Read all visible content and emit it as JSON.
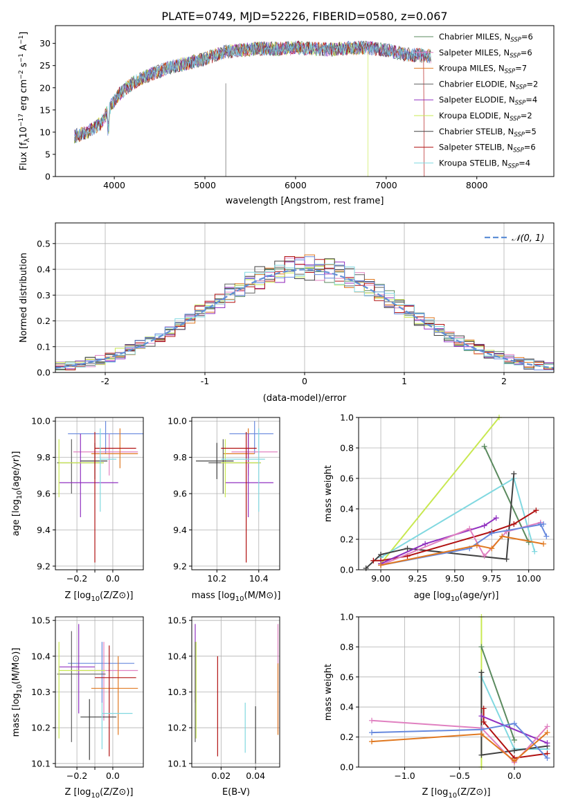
{
  "figure_title": "PLATE=0749, MJD=52226, FIBERID=0580, z=0.067",
  "colors": {
    "Chabrier MILES": "#5a8a5e",
    "Salpeter MILES": "#e080c0",
    "Kroupa MILES": "#e07820",
    "Chabrier ELODIE": "#606060",
    "Salpeter ELODIE": "#9030c0",
    "Kroupa ELODIE": "#c8e850",
    "Chabrier STELIB": "#404040",
    "Salpeter STELIB": "#b01010",
    "Kroupa STELIB": "#80d8e0",
    "blue": "#6688dd",
    "gauss": "#5f8fd6"
  },
  "chart_data": [
    {
      "id": "spectrum",
      "type": "line",
      "xlabel": "wavelength [Angstrom, rest frame]",
      "ylabel": "Flux [f",
      "xlim": [
        3350,
        8850
      ],
      "ylim": [
        0,
        34
      ],
      "xticks": [
        4000,
        5000,
        6000,
        7000,
        8000
      ],
      "yticks": [
        0,
        5,
        10,
        15,
        20,
        25,
        30
      ],
      "continuum": [
        [
          3550,
          9
        ],
        [
          3700,
          10
        ],
        [
          3850,
          12
        ],
        [
          3950,
          15.5
        ],
        [
          4050,
          18.5
        ],
        [
          4200,
          21
        ],
        [
          4400,
          23
        ],
        [
          4600,
          24.5
        ],
        [
          4800,
          25.5
        ],
        [
          5000,
          26.5
        ],
        [
          5200,
          28
        ],
        [
          5400,
          28.5
        ],
        [
          5600,
          28.8
        ],
        [
          5800,
          28.8
        ],
        [
          6000,
          29
        ],
        [
          6200,
          28.8
        ],
        [
          6400,
          28.6
        ],
        [
          6600,
          29
        ],
        [
          6800,
          29
        ],
        [
          7000,
          28.5
        ],
        [
          7200,
          27.5
        ],
        [
          7400,
          27.3
        ],
        [
          7500,
          27
        ]
      ],
      "legend": [
        {
          "label": "Chabrier MILES, N",
          "n": "6",
          "color_key": "Chabrier MILES"
        },
        {
          "label": "Salpeter MILES, N",
          "n": "6",
          "color_key": "Salpeter MILES"
        },
        {
          "label": "Kroupa MILES, N",
          "n": "7",
          "color_key": "Kroupa MILES"
        },
        {
          "label": "Chabrier ELODIE, N",
          "n": "2",
          "color_key": "Chabrier ELODIE"
        },
        {
          "label": "Salpeter ELODIE, N",
          "n": "4",
          "color_key": "Salpeter ELODIE"
        },
        {
          "label": "Kroupa ELODIE, N",
          "n": "2",
          "color_key": "Kroupa ELODIE"
        },
        {
          "label": "Chabrier STELIB, N",
          "n": "5",
          "color_key": "Chabrier STELIB"
        },
        {
          "label": "Salpeter STELIB, N",
          "n": "6",
          "color_key": "Salpeter STELIB"
        },
        {
          "label": "Kroupa STELIB, N",
          "n": "4",
          "color_key": "Kroupa STELIB"
        }
      ]
    },
    {
      "id": "residuals",
      "type": "bar",
      "xlabel": "(data-model)/error",
      "ylabel": "Normed distribution",
      "xlim": [
        -2.5,
        2.5
      ],
      "ylim": [
        0,
        0.58
      ],
      "xticks": [
        -2,
        -1,
        0,
        1,
        2
      ],
      "yticks": [
        0.0,
        0.1,
        0.2,
        0.3,
        0.4,
        0.5
      ],
      "legend_label": "𝒩(0, 1)",
      "bin_width": 0.1
    },
    {
      "id": "z-age",
      "type": "scatter",
      "xlabel": "Z [log",
      "ylabel": "age  [log",
      "xlim": [
        -0.32,
        0.17
      ],
      "ylim": [
        9.18,
        10.02
      ],
      "xticks": [
        -0.2,
        -0.1,
        0.0
      ],
      "xticklabels": [
        "−0.2",
        "",
        "0.0"
      ],
      "yticks": [
        9.2,
        9.4,
        9.6,
        9.8,
        10.0
      ],
      "points": [
        {
          "key": "blue",
          "x": -0.04,
          "y": 9.93,
          "xlo": -0.25,
          "xhi": 0.17,
          "ylo": 9.82,
          "yhi": 10.0
        },
        {
          "key": "Salpeter MILES",
          "x": -0.02,
          "y": 9.83,
          "xlo": -0.22,
          "xhi": 0.14,
          "ylo": 9.7,
          "yhi": 9.93
        },
        {
          "key": "Kroupa MILES",
          "x": 0.04,
          "y": 9.82,
          "xlo": -0.12,
          "xhi": 0.14,
          "ylo": 9.74,
          "yhi": 9.96
        },
        {
          "key": "Chabrier ELODIE",
          "x": -0.23,
          "y": 9.77,
          "xlo": -0.31,
          "xhi": -0.05,
          "ylo": 9.6,
          "yhi": 9.9
        },
        {
          "key": "Salpeter ELODIE",
          "x": -0.18,
          "y": 9.66,
          "xlo": -0.3,
          "xhi": 0.03,
          "ylo": 9.47,
          "yhi": 9.93
        },
        {
          "key": "Kroupa ELODIE",
          "x": -0.3,
          "y": 9.77,
          "xlo": -0.3,
          "xhi": -0.05,
          "ylo": 9.58,
          "yhi": 9.9
        },
        {
          "key": "Chabrier STELIB",
          "x": -0.1,
          "y": 9.78,
          "xlo": -0.18,
          "xhi": -0.03,
          "ylo": 9.68,
          "yhi": 9.88
        },
        {
          "key": "Salpeter STELIB",
          "x": -0.1,
          "y": 9.85,
          "xlo": -0.1,
          "xhi": 0.13,
          "ylo": 9.22,
          "yhi": 9.94
        },
        {
          "key": "Kroupa STELIB",
          "x": -0.07,
          "y": 9.79,
          "xlo": -0.07,
          "xhi": 0.02,
          "ylo": 9.5,
          "yhi": 9.96
        }
      ]
    },
    {
      "id": "mass-age",
      "type": "scatter",
      "xlabel": "mass [log",
      "ylabel": "",
      "xlim": [
        10.08,
        10.5
      ],
      "ylim": [
        9.18,
        10.02
      ],
      "xticks": [
        10.2,
        10.4
      ],
      "yticks": [
        9.2,
        9.4,
        9.6,
        9.8,
        10.0
      ],
      "points": [
        {
          "key": "blue",
          "x": 10.38,
          "y": 9.93,
          "xlo": 10.26,
          "xhi": 10.47,
          "ylo": 9.82,
          "yhi": 10.0
        },
        {
          "key": "Salpeter MILES",
          "x": 10.35,
          "y": 9.83,
          "xlo": 10.27,
          "xhi": 10.49,
          "ylo": 9.7,
          "yhi": 9.93
        },
        {
          "key": "Kroupa MILES",
          "x": 10.35,
          "y": 9.82,
          "xlo": 10.23,
          "xhi": 10.38,
          "ylo": 9.74,
          "yhi": 9.96
        },
        {
          "key": "Chabrier ELODIE",
          "x": 10.23,
          "y": 9.77,
          "xlo": 10.16,
          "xhi": 10.41,
          "ylo": 9.6,
          "yhi": 9.9
        },
        {
          "key": "Salpeter ELODIE",
          "x": 10.35,
          "y": 9.66,
          "xlo": 10.24,
          "xhi": 10.47,
          "ylo": 9.47,
          "yhi": 9.93
        },
        {
          "key": "Kroupa ELODIE",
          "x": 10.24,
          "y": 9.77,
          "xlo": 10.22,
          "xhi": 10.41,
          "ylo": 9.58,
          "yhi": 9.9
        },
        {
          "key": "Chabrier STELIB",
          "x": 10.2,
          "y": 9.78,
          "xlo": 10.1,
          "xhi": 10.28,
          "ylo": 9.68,
          "yhi": 9.88
        },
        {
          "key": "Salpeter STELIB",
          "x": 10.34,
          "y": 9.85,
          "xlo": 10.22,
          "xhi": 10.39,
          "ylo": 9.22,
          "yhi": 9.94
        },
        {
          "key": "Kroupa STELIB",
          "x": 10.4,
          "y": 9.79,
          "xlo": 10.22,
          "xhi": 10.43,
          "ylo": 9.5,
          "yhi": 9.96
        }
      ]
    },
    {
      "id": "z-mass",
      "type": "scatter",
      "xlabel": "Z [log",
      "ylabel": "mass [log",
      "xlim": [
        -0.32,
        0.17
      ],
      "ylim": [
        10.09,
        10.51
      ],
      "xticks": [
        -0.2,
        -0.1,
        0.0
      ],
      "xticklabels": [
        "−0.2",
        "",
        "0.0"
      ],
      "yticks": [
        10.1,
        10.2,
        10.3,
        10.4,
        10.5
      ],
      "points": [
        {
          "key": "blue",
          "x": -0.06,
          "y": 10.38,
          "xlo": -0.25,
          "xhi": 0.12,
          "ylo": 10.27,
          "yhi": 10.44
        },
        {
          "key": "Salpeter MILES",
          "x": -0.05,
          "y": 10.36,
          "xlo": -0.22,
          "xhi": 0.14,
          "ylo": 10.22,
          "yhi": 10.44
        },
        {
          "key": "Kroupa MILES",
          "x": 0.03,
          "y": 10.31,
          "xlo": -0.12,
          "xhi": 0.14,
          "ylo": 10.18,
          "yhi": 10.4
        },
        {
          "key": "Chabrier ELODIE",
          "x": -0.23,
          "y": 10.35,
          "xlo": -0.31,
          "xhi": -0.04,
          "ylo": 10.16,
          "yhi": 10.47
        },
        {
          "key": "Salpeter ELODIE",
          "x": -0.19,
          "y": 10.37,
          "xlo": -0.3,
          "xhi": -0.1,
          "ylo": 10.24,
          "yhi": 10.49
        },
        {
          "key": "Kroupa ELODIE",
          "x": -0.3,
          "y": 10.36,
          "xlo": -0.3,
          "xhi": -0.04,
          "ylo": 10.17,
          "yhi": 10.44
        },
        {
          "key": "Chabrier STELIB",
          "x": -0.13,
          "y": 10.23,
          "xlo": -0.18,
          "xhi": 0.02,
          "ylo": 10.11,
          "yhi": 10.28
        },
        {
          "key": "Salpeter STELIB",
          "x": -0.02,
          "y": 10.34,
          "xlo": -0.1,
          "xhi": 0.13,
          "ylo": 10.12,
          "yhi": 10.43
        },
        {
          "key": "Kroupa STELIB",
          "x": -0.06,
          "y": 10.24,
          "xlo": -0.06,
          "xhi": 0.11,
          "ylo": 10.14,
          "yhi": 10.27
        }
      ]
    },
    {
      "id": "ebv",
      "type": "scatter",
      "xlabel": "E(B-V)",
      "ylabel": "",
      "xlim": [
        0.003,
        0.054
      ],
      "ylim": [
        10.09,
        10.51
      ],
      "xticks": [
        0.02,
        0.04
      ],
      "yticks": [
        10.1,
        10.2,
        10.3,
        10.4,
        10.5
      ],
      "points": [
        {
          "key": "Salpeter ELODIE",
          "x": 0.005,
          "ylo": 10.27,
          "yhi": 10.49
        },
        {
          "key": "Kroupa ELODIE",
          "x": 0.0055,
          "ylo": 10.17,
          "yhi": 10.44
        },
        {
          "key": "Chabrier ELODIE",
          "x": 0.005,
          "ylo": 10.16,
          "yhi": 10.44
        },
        {
          "key": "Salpeter STELIB",
          "x": 0.018,
          "ylo": 10.12,
          "yhi": 10.4
        },
        {
          "key": "Kroupa STELIB",
          "x": 0.034,
          "ylo": 10.13,
          "yhi": 10.27
        },
        {
          "key": "Chabrier STELIB",
          "x": 0.04,
          "ylo": 10.1,
          "yhi": 10.26
        },
        {
          "key": "Salpeter MILES",
          "x": 0.053,
          "ylo": 10.19,
          "yhi": 10.49
        },
        {
          "key": "Kroupa MILES",
          "x": 0.053,
          "ylo": 10.18,
          "yhi": 10.38
        }
      ]
    },
    {
      "id": "age-weight",
      "type": "line",
      "xlabel": "age  [log",
      "ylabel": "mass weight",
      "xlim": [
        8.85,
        10.17
      ],
      "ylim": [
        0,
        1.0
      ],
      "xticks": [
        9.0,
        9.25,
        9.5,
        9.75,
        10.0
      ],
      "xticklabels": [
        "9.00",
        "9.25",
        "9.50",
        "9.75",
        "10.00"
      ],
      "yticks": [
        0.0,
        0.2,
        0.4,
        0.6,
        0.8,
        1.0
      ],
      "series": [
        {
          "key": "Kroupa ELODIE",
          "x": [
            9.0,
            9.8
          ],
          "y": [
            0.04,
            1.0
          ]
        },
        {
          "key": "Chabrier MILES",
          "x": [
            9.7,
            10.0
          ],
          "y": [
            0.81,
            0.18
          ]
        },
        {
          "key": "Kroupa STELIB",
          "x": [
            9.0,
            9.9,
            10.04
          ],
          "y": [
            0.08,
            0.6,
            0.12
          ]
        },
        {
          "key": "Chabrier STELIB",
          "x": [
            8.9,
            9.0,
            9.18,
            9.85,
            9.9
          ],
          "y": [
            0.01,
            0.1,
            0.14,
            0.07,
            0.63
          ]
        },
        {
          "key": "Salpeter STELIB",
          "x": [
            8.95,
            9.0,
            9.18,
            9.75,
            9.9,
            10.05
          ],
          "y": [
            0.06,
            0.06,
            0.09,
            0.25,
            0.3,
            0.39
          ]
        },
        {
          "key": "Salpeter ELODIE",
          "x": [
            9.0,
            9.3,
            9.7,
            9.78
          ],
          "y": [
            0.04,
            0.17,
            0.29,
            0.34
          ]
        },
        {
          "key": "Salpeter MILES",
          "x": [
            9.0,
            9.6,
            9.7,
            9.85,
            10.08
          ],
          "y": [
            0.03,
            0.27,
            0.09,
            0.25,
            0.31
          ]
        },
        {
          "key": "blue",
          "x": [
            9.0,
            9.6,
            9.75,
            10.1
          ],
          "y": [
            0.03,
            0.14,
            0.24,
            0.3
          ]
        },
        {
          "key": "blue",
          "x": [
            10.08,
            10.12
          ],
          "y": [
            0.3,
            0.22
          ]
        },
        {
          "key": "Kroupa MILES",
          "x": [
            9.0,
            9.65,
            9.75,
            9.82,
            10.1
          ],
          "y": [
            0.03,
            0.16,
            0.14,
            0.22,
            0.17
          ]
        }
      ]
    },
    {
      "id": "z-weight",
      "type": "line",
      "xlabel": "Z [log",
      "ylabel": "mass weight",
      "xlim": [
        -1.42,
        0.36
      ],
      "ylim": [
        0,
        1.0
      ],
      "xticks": [
        -1.0,
        -0.5,
        0.0
      ],
      "xticklabels": [
        "−1.0",
        "−0.5",
        "0.0"
      ],
      "yticks": [
        0.0,
        0.2,
        0.4,
        0.6,
        0.8,
        1.0
      ],
      "series": [
        {
          "key": "Kroupa ELODIE",
          "x": [
            -0.3,
            -0.3
          ],
          "y": [
            0.0,
            1.0
          ]
        },
        {
          "key": "Chabrier MILES",
          "x": [
            -0.3,
            0.0
          ],
          "y": [
            0.8,
            0.18
          ]
        },
        {
          "key": "Kroupa STELIB",
          "x": [
            -0.3,
            0.0,
            0.3
          ],
          "y": [
            0.6,
            0.12,
            0.12
          ]
        },
        {
          "key": "Chabrier STELIB",
          "x": [
            -0.3,
            -0.3,
            0.0,
            0.3
          ],
          "y": [
            0.63,
            0.08,
            0.11,
            0.14
          ]
        },
        {
          "key": "Salpeter STELIB",
          "x": [
            -0.28,
            -0.28,
            0.0,
            0.3
          ],
          "y": [
            0.39,
            0.3,
            0.06,
            0.09
          ]
        },
        {
          "key": "Salpeter ELODIE",
          "x": [
            -0.3,
            0.3
          ],
          "y": [
            0.34,
            0.16
          ]
        },
        {
          "key": "Salpeter MILES",
          "x": [
            -1.3,
            -0.3,
            0.0,
            0.3
          ],
          "y": [
            0.31,
            0.26,
            0.03,
            0.27
          ]
        },
        {
          "key": "blue",
          "x": [
            -1.3,
            -0.3,
            0.0,
            0.3
          ],
          "y": [
            0.23,
            0.25,
            0.29,
            0.06
          ]
        },
        {
          "key": "Kroupa MILES",
          "x": [
            -1.3,
            -0.3,
            0.0,
            0.3
          ],
          "y": [
            0.17,
            0.22,
            0.04,
            0.23
          ]
        }
      ]
    }
  ]
}
